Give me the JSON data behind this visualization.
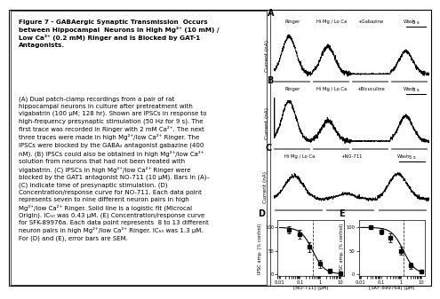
{
  "title_bold": "Figure 7 - GABAergic Synaptic Transmission  Occurs\nbetween Hippocampal  Neurons in High Mg²⁺ (10 mM) /\nLow Ca²⁺ (0.2 mM) Ringer and is Blocked by GAT-1\nAntagonists.",
  "panel_A_labels": [
    "Ringer",
    "Hi Mg / Lo Ca",
    "+Gabazine",
    "Wash"
  ],
  "panel_B_labels": [
    "Ringer",
    "Hi Mg / Lo Ca",
    "+Bicuculine",
    "Wash"
  ],
  "panel_C_labels": [
    "Hi Mg / Lo Ca",
    "+NO-711",
    "Wash"
  ],
  "panel_D_xlabel": "[NO-711] (μM)",
  "panel_E_xlabel": "[SKF-89976a] (μM)",
  "ylabel_AC": "Current (nA)",
  "ylabel_D": "IPSC amp. (% control)",
  "ylabel_E": "IPSC amp. (% control)",
  "scale_bar": "5 s",
  "normal_text_lines": [
    "(A) Dual patch-clamp recordings from a pair of rat",
    "hippocampal neurons in culture after pretreatment with",
    "vigabatrin (100 μM; 128 hr). Shown are IPSCs in response to",
    "high-frequency presynaptic stimulation (50 Hz for 9 s). The",
    "first trace was recorded in Ringer with 2 mM Ca²⁺. The next",
    "three traces were made in high Mg²⁺/low Ca²⁺ Ringer. The",
    "IPSCs were blocked by the GABA₂ antagonist gabazine (400",
    "nM). (B) IPSCs could also be obtained in high Mg²⁺/low Ca²⁺",
    "solution from neurons that had not been treated with",
    "vigabatrin. (C) IPSCs in high Mg²⁺/low Ca²⁺ Ringer were",
    "blocked by the GAT1 antagonist NO-711 (10 μM). Bars in (A)–",
    "(C) indicate time of presynaptic stimulation. (D)",
    "Concentration/response curve for NO-711. Each data point",
    "represents seven to nine different neuron pairs in high",
    "Mg²⁺/low Ca²⁺ Ringer. Solid line is a logistic fit (Microcal",
    "Origin). IC₅₀ was 0.43 μM. (E) Concentration/response curve",
    "for SFK-89976a. Each data point represents  8 to 13 different",
    "neuron pairs in high Mg²⁺/low Ca²⁺ Ringer. IC₅₀ was 1.3 μM.",
    "For (D) and (E), error bars are SEM."
  ]
}
